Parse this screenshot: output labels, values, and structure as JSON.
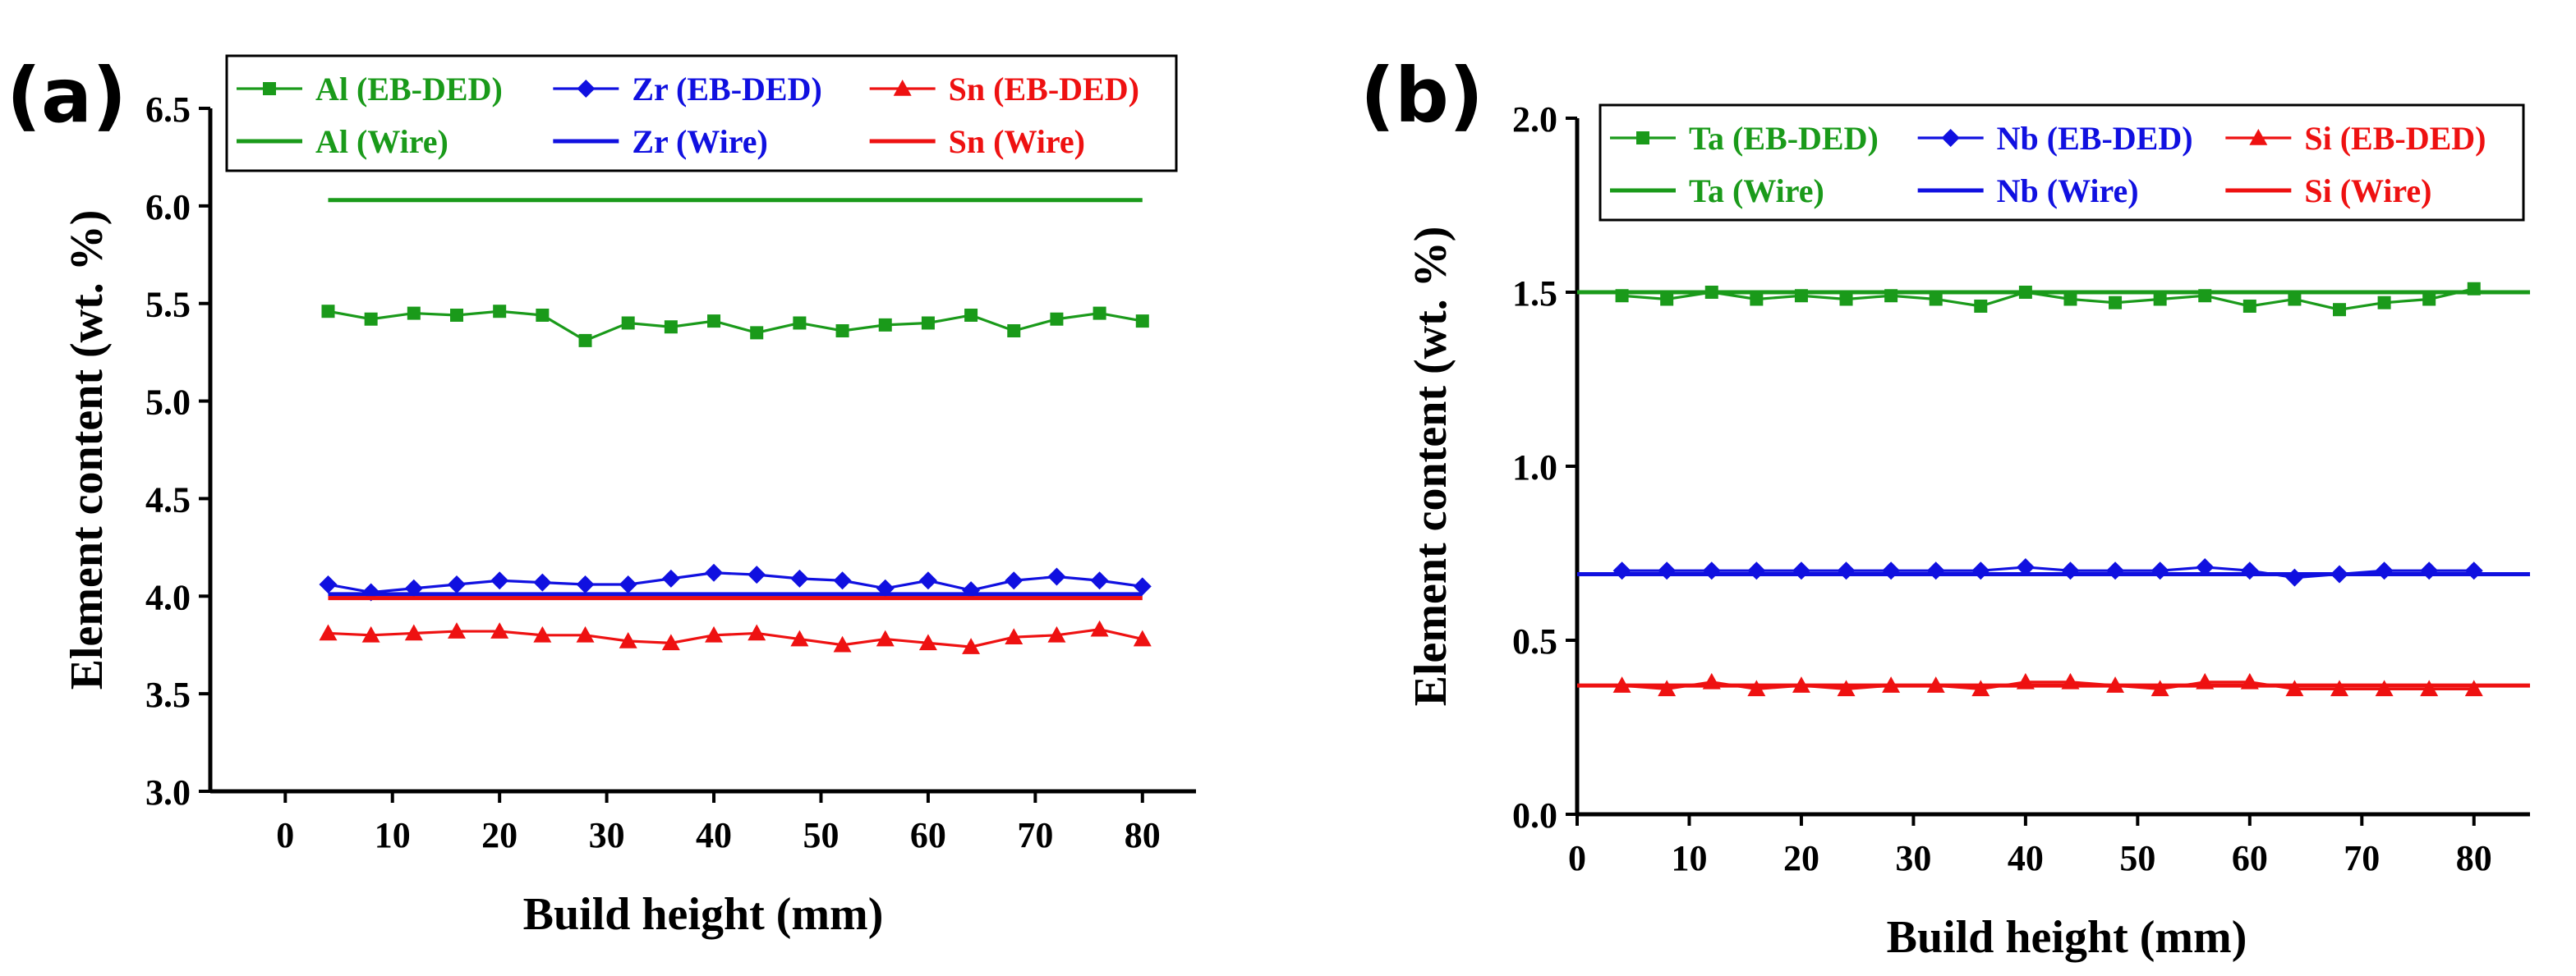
{
  "chart_data": [
    {
      "type": "line",
      "panel_label": "(a)",
      "xlabel": "Build height (mm)",
      "ylabel": "Element content (wt. %)",
      "xlim": [
        -7,
        85
      ],
      "ylim": [
        3.0,
        6.5
      ],
      "xticks": [
        0,
        10,
        20,
        30,
        40,
        50,
        60,
        70,
        80
      ],
      "yticks": [
        3.0,
        3.5,
        4.0,
        4.5,
        5.0,
        5.5,
        6.0,
        6.5
      ],
      "x": [
        4,
        8,
        12,
        16,
        20,
        24,
        28,
        32,
        36,
        40,
        44,
        48,
        52,
        56,
        60,
        64,
        68,
        72,
        76,
        80
      ],
      "series": [
        {
          "name": "Al (EB-DED)",
          "color": "#1a9a1a",
          "marker": "square",
          "values": [
            5.46,
            5.42,
            5.45,
            5.44,
            5.46,
            5.44,
            5.31,
            5.4,
            5.38,
            5.41,
            5.35,
            5.4,
            5.36,
            5.39,
            5.4,
            5.44,
            5.36,
            5.42,
            5.45,
            5.41
          ]
        },
        {
          "name": "Zr (EB-DED)",
          "color": "#1010e0",
          "marker": "diamond",
          "values": [
            4.06,
            4.02,
            4.04,
            4.06,
            4.08,
            4.07,
            4.06,
            4.06,
            4.09,
            4.12,
            4.11,
            4.09,
            4.08,
            4.04,
            4.08,
            4.03,
            4.08,
            4.1,
            4.08,
            4.05
          ]
        },
        {
          "name": "Sn (EB-DED)",
          "color": "#ee1111",
          "marker": "triangle",
          "values": [
            3.81,
            3.8,
            3.81,
            3.82,
            3.82,
            3.8,
            3.8,
            3.77,
            3.76,
            3.8,
            3.81,
            3.78,
            3.75,
            3.78,
            3.76,
            3.74,
            3.79,
            3.8,
            3.83,
            3.78
          ]
        },
        {
          "name": "Al (Wire)",
          "color": "#1a9a1a",
          "marker": "none",
          "x_range": [
            4,
            80
          ],
          "constant": 6.03
        },
        {
          "name": "Zr (Wire)",
          "color": "#1010e0",
          "marker": "none",
          "x_range": [
            4,
            80
          ],
          "constant": 4.01
        },
        {
          "name": "Sn (Wire)",
          "color": "#ee1111",
          "marker": "none",
          "x_range": [
            4,
            80
          ],
          "constant": 3.99
        }
      ]
    },
    {
      "type": "line",
      "panel_label": "(b)",
      "xlabel": "Build height (mm)",
      "ylabel": "Element content (wt. %)",
      "xlim": [
        0,
        85
      ],
      "ylim": [
        0.0,
        2.0
      ],
      "xticks": [
        0,
        10,
        20,
        30,
        40,
        50,
        60,
        70,
        80
      ],
      "yticks": [
        0.0,
        0.5,
        1.0,
        1.5,
        2.0
      ],
      "x": [
        4,
        8,
        12,
        16,
        20,
        24,
        28,
        32,
        36,
        40,
        44,
        48,
        52,
        56,
        60,
        64,
        68,
        72,
        76,
        80
      ],
      "series": [
        {
          "name": "Ta (EB-DED)",
          "color": "#1a9a1a",
          "marker": "square",
          "values": [
            1.49,
            1.48,
            1.5,
            1.48,
            1.49,
            1.48,
            1.49,
            1.48,
            1.46,
            1.5,
            1.48,
            1.47,
            1.48,
            1.49,
            1.46,
            1.48,
            1.45,
            1.47,
            1.48,
            1.51
          ]
        },
        {
          "name": "Nb (EB-DED)",
          "color": "#1010e0",
          "marker": "diamond",
          "values": [
            0.7,
            0.7,
            0.7,
            0.7,
            0.7,
            0.7,
            0.7,
            0.7,
            0.7,
            0.71,
            0.7,
            0.7,
            0.7,
            0.71,
            0.7,
            0.68,
            0.69,
            0.7,
            0.7,
            0.7
          ]
        },
        {
          "name": "Si (EB-DED)",
          "color": "#ee1111",
          "marker": "triangle",
          "values": [
            0.37,
            0.36,
            0.38,
            0.36,
            0.37,
            0.36,
            0.37,
            0.37,
            0.36,
            0.38,
            0.38,
            0.37,
            0.36,
            0.38,
            0.38,
            0.36,
            0.36,
            0.36,
            0.36,
            0.36
          ]
        },
        {
          "name": "Ta (Wire)",
          "color": "#1a9a1a",
          "marker": "none",
          "x_range": [
            0,
            85
          ],
          "constant": 1.5
        },
        {
          "name": "Nb (Wire)",
          "color": "#1010e0",
          "marker": "none",
          "x_range": [
            0,
            85
          ],
          "constant": 0.69
        },
        {
          "name": "Si (Wire)",
          "color": "#ee1111",
          "marker": "none",
          "x_range": [
            0,
            85
          ],
          "constant": 0.37
        }
      ]
    }
  ]
}
